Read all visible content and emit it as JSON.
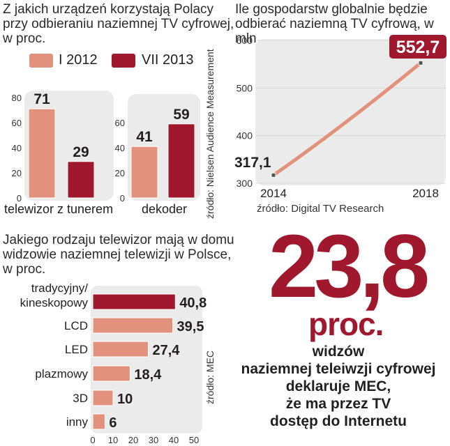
{
  "colors": {
    "light": "#e1917c",
    "dark": "#a0182d",
    "panel": "#ebebeb",
    "line": "#e1917c"
  },
  "chart1": {
    "title": [
      "Z jakich urządzeń korzystają Polacy",
      "przy odbieraniu naziemnej TV cyfrowej,",
      "w proc."
    ],
    "legend": [
      "I 2012",
      "VII 2013"
    ],
    "source": "źródło: Nielsen Audience Measurement"
  },
  "chart2": {
    "title": [
      "Ile gospodarstw globalnie będzie",
      "odbierać naziemną TV cyfrową, w mln"
    ],
    "source": "źródło: Digital TV Research"
  },
  "chart3": {
    "title": [
      "Jakiego rodzaju telewizor mają w domu",
      "widzowie naziemnej telewizji w Polsce,",
      "w proc."
    ],
    "source": "źródło: MEC"
  },
  "highlight": {
    "number": "23,8",
    "unit": "proc.",
    "lines": [
      "widzów",
      "naziemnej teleiwzji cyfrowej",
      "deklaruje MEC,",
      "że ma przez TV",
      "dostęp do Internetu"
    ]
  },
  "chart_data": [
    {
      "type": "bar",
      "groups": [
        {
          "name": "telewizor z tunerem",
          "ylim": [
            0,
            80
          ],
          "ticks": [
            "0",
            "20",
            "40",
            "60",
            "80"
          ],
          "values": [
            71,
            29
          ],
          "labels": [
            "71",
            "29"
          ]
        },
        {
          "name": "dekoder",
          "ylim": [
            0,
            60
          ],
          "ticks": [
            "0",
            "20",
            "40",
            "60"
          ],
          "values": [
            41,
            59
          ],
          "labels": [
            "41",
            "59"
          ]
        }
      ],
      "series": [
        {
          "name": "I 2012",
          "color": "#e1917c"
        },
        {
          "name": "VII 2013",
          "color": "#a0182d"
        }
      ]
    },
    {
      "type": "line",
      "x": [
        2014,
        2018
      ],
      "x_labels": [
        "2014",
        "2018"
      ],
      "y": [
        317.1,
        552.7
      ],
      "y_labels": [
        "317,1",
        "552,7"
      ],
      "ylim": [
        300,
        600
      ],
      "y_ticks": [
        "300",
        "400",
        "500",
        "600"
      ]
    },
    {
      "type": "bar",
      "orientation": "horizontal",
      "categories": [
        "tradycyjny/\nkineskopowy",
        "LCD",
        "LED",
        "plazmowy",
        "3D",
        "inny"
      ],
      "values": [
        40.8,
        39.5,
        27.4,
        18.4,
        10,
        6
      ],
      "labels": [
        "40,8",
        "39,5",
        "27,4",
        "18,4",
        "10",
        "6"
      ],
      "highlight_index": 0,
      "xlim": [
        0,
        50
      ],
      "x_ticks": [
        "0",
        "10",
        "20",
        "30",
        "40",
        "50"
      ]
    }
  ]
}
